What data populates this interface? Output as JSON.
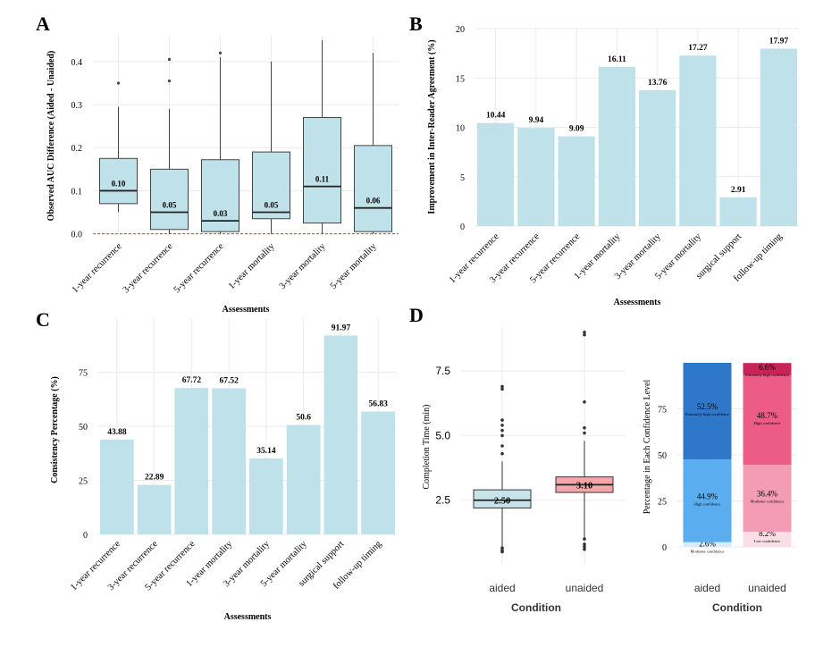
{
  "colors": {
    "bar": "#bfe2ea",
    "grid": "#ebebeb",
    "zero_line": "#e03c3c",
    "aided_box": "#c7e4ea",
    "unaided_box": "#f4a7ab",
    "aided_high": "#2f78c9",
    "aided_mod": "#5aaef0",
    "aided_low": "#d9ecfb",
    "unaided_ext": "#c8245a",
    "unaided_high": "#ec5c86",
    "unaided_mod": "#f49bb6",
    "unaided_low": "#fbdde6"
  },
  "chart_data": [
    {
      "panel": "A",
      "type": "box",
      "xlabel": "Assessments",
      "ylabel": "Observed AUC Difference (Aided - Unaided)",
      "ylim": [
        -0.005,
        0.46
      ],
      "yticks": [
        0.0,
        0.1,
        0.2,
        0.3,
        0.4
      ],
      "ytick_labels": [
        "0.0",
        "0.1",
        "0.2",
        "0.3",
        "0.4"
      ],
      "categories": [
        "1-year recurrence",
        "3-year recurrence",
        "5-year recurrence",
        "1-year mortality",
        "3-year mortality",
        "5-year mortality"
      ],
      "boxes": [
        {
          "whisker_low": 0.05,
          "q1": 0.07,
          "median": 0.1,
          "q3": 0.175,
          "whisker_high": 0.295,
          "outliers": [
            0.35
          ],
          "label": "0.10"
        },
        {
          "whisker_low": 0.0,
          "q1": 0.01,
          "median": 0.05,
          "q3": 0.15,
          "whisker_high": 0.29,
          "outliers": [
            0.355,
            0.405
          ],
          "label": "0.05"
        },
        {
          "whisker_low": 0.0,
          "q1": 0.005,
          "median": 0.03,
          "q3": 0.172,
          "whisker_high": 0.41,
          "outliers": [
            0.42
          ],
          "label": "0.03"
        },
        {
          "whisker_low": 0.0,
          "q1": 0.035,
          "median": 0.05,
          "q3": 0.19,
          "whisker_high": 0.4,
          "outliers": [],
          "label": "0.05"
        },
        {
          "whisker_low": 0.0,
          "q1": 0.025,
          "median": 0.11,
          "q3": 0.27,
          "whisker_high": 0.45,
          "outliers": [],
          "label": "0.11"
        },
        {
          "whisker_low": 0.0,
          "q1": 0.005,
          "median": 0.06,
          "q3": 0.205,
          "whisker_high": 0.42,
          "outliers": [],
          "label": "0.06"
        }
      ]
    },
    {
      "panel": "B",
      "type": "bar",
      "xlabel": "Assessments",
      "ylabel": "Improvement in Inter-Reader Agreement (%)",
      "ylim": [
        0,
        20
      ],
      "yticks": [
        0,
        5,
        10,
        15,
        20
      ],
      "ytick_labels": [
        "0",
        "5",
        "10",
        "15",
        "20"
      ],
      "categories": [
        "1-year recurrence",
        "3-year recurrence",
        "5-year recurrence",
        "1-year mortality",
        "3-year mortality",
        "5-year mortality",
        "surgical support",
        "follow-up timing"
      ],
      "values": [
        10.44,
        9.94,
        9.09,
        16.11,
        13.76,
        17.27,
        2.91,
        17.97
      ],
      "value_labels": [
        "10.44",
        "9.94",
        "9.09",
        "16.11",
        "13.76",
        "17.27",
        "2.91",
        "17.97"
      ]
    },
    {
      "panel": "C",
      "type": "bar",
      "xlabel": "Assessments",
      "ylabel": "Consistency Percentage (%)",
      "ylim": [
        0,
        100
      ],
      "yticks": [
        0,
        25,
        50,
        75
      ],
      "ytick_labels": [
        "0",
        "25",
        "50",
        "75"
      ],
      "categories": [
        "1-year recurrence",
        "3-year recurrence",
        "5-year recurrence",
        "1-year mortality",
        "3-year mortality",
        "5-year mortality",
        "surgical support",
        "follow-up timing"
      ],
      "values": [
        43.88,
        22.89,
        67.72,
        67.52,
        35.14,
        50.6,
        91.97,
        56.83
      ],
      "value_labels": [
        "43.88",
        "22.89",
        "67.72",
        "67.52",
        "35.14",
        "50.6",
        "91.97",
        "56.83"
      ]
    },
    {
      "panel": "D",
      "type": "box",
      "xlabel": "Condition",
      "ylabel": "Completion Time (min)",
      "ylim": [
        0,
        9.2
      ],
      "yticks": [
        2.5,
        5.0,
        7.5
      ],
      "ytick_labels": [
        "2.5",
        "5.0",
        "7.5"
      ],
      "categories": [
        "aided",
        "unaided"
      ],
      "boxes": [
        {
          "whisker_low": 0.6,
          "q1": 2.2,
          "median": 2.5,
          "q3": 2.9,
          "whisker_high": 4.0,
          "outliers": [
            0.5,
            0.55,
            0.65,
            4.3,
            4.6,
            5.0,
            5.2,
            5.4,
            5.6,
            6.8,
            6.9
          ],
          "label": "2.50"
        },
        {
          "whisker_low": 1.0,
          "q1": 2.8,
          "median": 3.1,
          "q3": 3.4,
          "whisker_high": 4.8,
          "outliers": [
            0.6,
            0.7,
            0.8,
            1.0,
            5.1,
            5.3,
            6.3,
            8.9,
            9.0
          ],
          "label": "3.10"
        }
      ]
    },
    {
      "panel": "D",
      "type": "stacked_bar",
      "xlabel": "Condition",
      "ylabel": "Percentage in Each Confidence Level",
      "ylim": [
        0,
        100
      ],
      "yticks": [
        0,
        25,
        50,
        75
      ],
      "ytick_labels": [
        "0",
        "25",
        "50",
        "75"
      ],
      "categories": [
        "aided",
        "unaided"
      ],
      "series": [
        {
          "condition": "aided",
          "segments": [
            {
              "name": "Moderate confidence",
              "value": 2.6,
              "label": "2.6%",
              "color_key": "aided_low"
            },
            {
              "name": "High confidence",
              "value": 44.9,
              "label": "44.9%",
              "color_key": "aided_mod"
            },
            {
              "name": "Extremely high confidence",
              "value": 52.5,
              "label": "52.5%",
              "color_key": "aided_high"
            }
          ]
        },
        {
          "condition": "unaided",
          "segments": [
            {
              "name": "Low confidence",
              "value": 8.2,
              "label": "8.2%",
              "color_key": "unaided_low"
            },
            {
              "name": "Moderate confidence",
              "value": 36.4,
              "label": "36.4%",
              "color_key": "unaided_mod"
            },
            {
              "name": "High confidence",
              "value": 48.7,
              "label": "48.7%",
              "color_key": "unaided_high"
            },
            {
              "name": "Extremely high confidence",
              "value": 6.6,
              "label": "6.6%",
              "color_key": "unaided_ext"
            }
          ]
        }
      ]
    }
  ],
  "panels": {
    "A": {
      "letter": "A"
    },
    "B": {
      "letter": "B"
    },
    "C": {
      "letter": "C"
    },
    "D": {
      "letter": "D"
    }
  }
}
